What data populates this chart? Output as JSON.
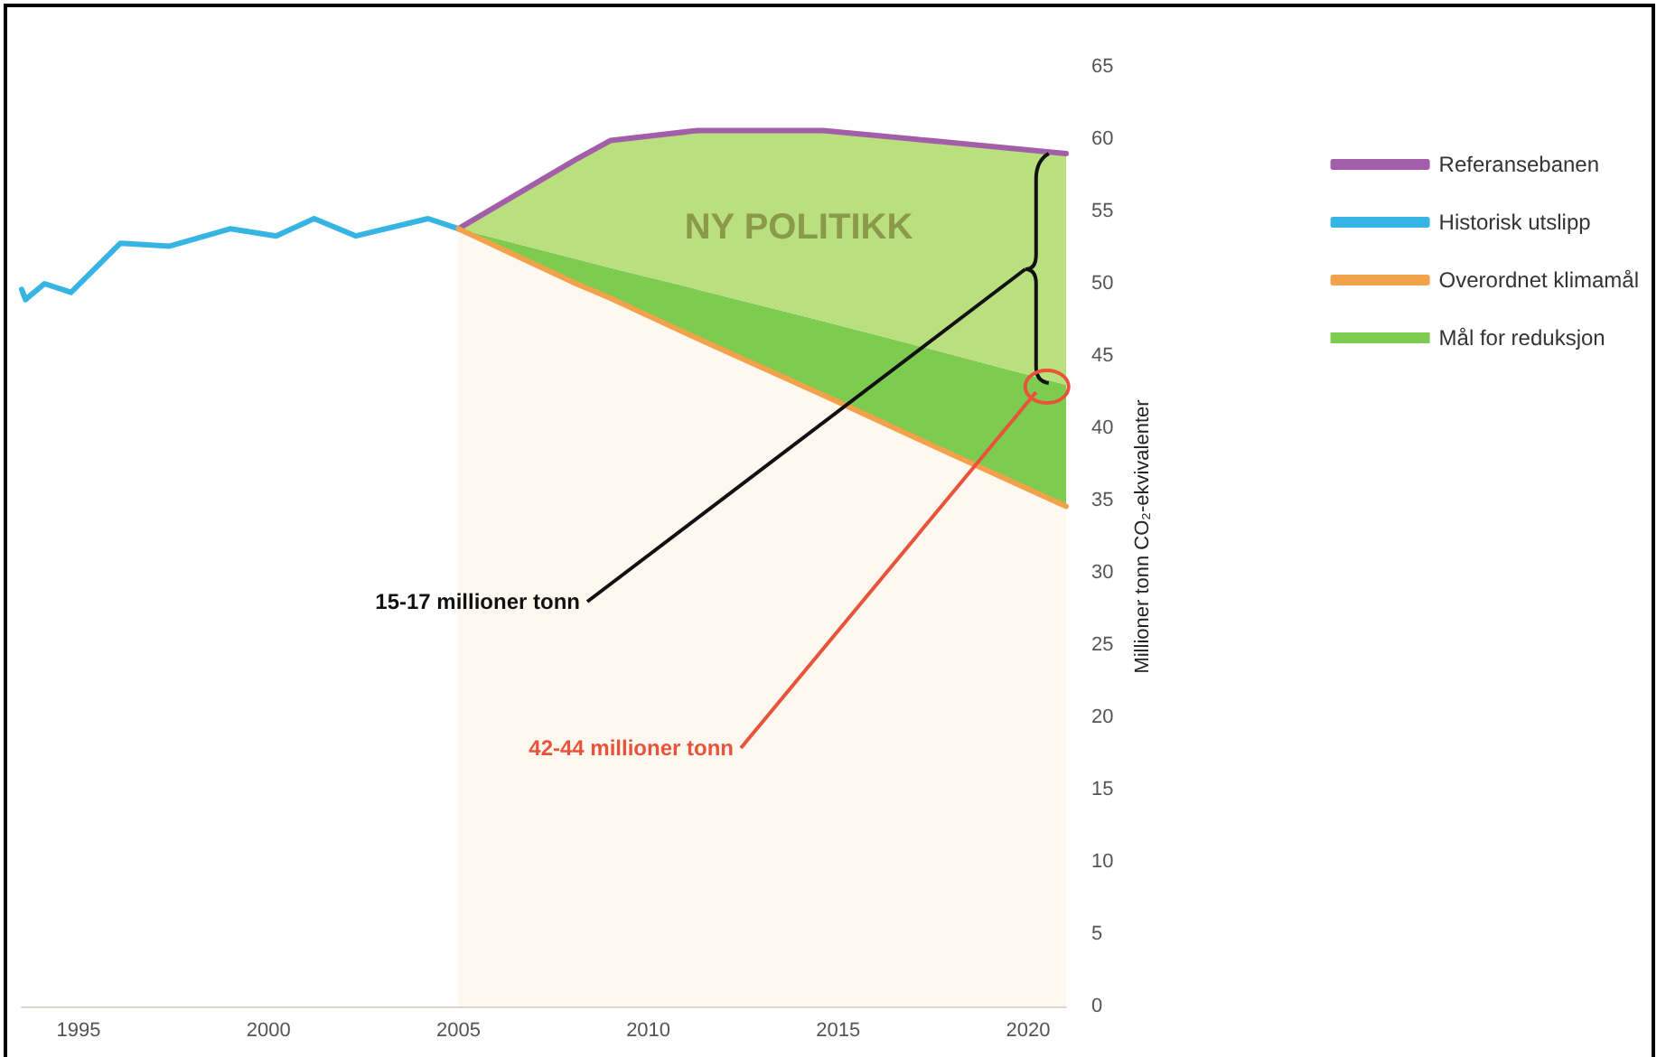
{
  "chart_data": {
    "type": "line",
    "ylabel": "Millioner tonn CO₂-ekvivalenter",
    "xlim": [
      1993.5,
      2021
    ],
    "xticks": [
      1995,
      2000,
      2005,
      2010,
      2015,
      2020
    ],
    "ylim": [
      0,
      65
    ],
    "yticks": [
      0,
      5,
      10,
      15,
      20,
      25,
      30,
      35,
      40,
      45,
      50,
      55,
      60,
      65
    ],
    "grid": false,
    "legend": "top right",
    "marker": "none",
    "line_style": "solid",
    "stacked": true,
    "series": [
      {
        "type": "area",
        "name": "Overordnet klimamål",
        "color": "#f2a24a",
        "x": [
          2005,
          2008.1,
          2009,
          2011.3,
          2014.6,
          2017.4,
          2021
        ],
        "values": [
          53.8,
          50,
          49,
          46.2,
          42.3,
          38.9,
          34.6
        ]
      },
      {
        "type": "area",
        "name": "Mål for reduksjon",
        "color": "#7dcb4f",
        "x": [
          2005,
          2008.1,
          2009,
          2011.3,
          2014.6,
          2017.4,
          2021
        ],
        "values": [
          0,
          1.7,
          2.1,
          3.4,
          5.1,
          6.6,
          8.4
        ]
      },
      {
        "type": "area",
        "color": "#b9df7e",
        "x": [
          2005,
          2008.1,
          2009,
          2011.3,
          2014.6,
          2017.4,
          2021
        ],
        "values": [
          0,
          6.9,
          8.8,
          11,
          13.2,
          14.4,
          16
        ]
      },
      {
        "name": "Referansebanen",
        "color": "#a25ea8",
        "x": [
          2005,
          2008.1,
          2009,
          2011.3,
          2014.6,
          2017.4,
          2021
        ],
        "values": [
          53.8,
          58.6,
          59.9,
          60.6,
          60.6,
          59.9,
          59
        ]
      },
      {
        "name": "Historisk utslipp",
        "color": "#36b4e3",
        "x": [
          1993.5,
          1993.6,
          1994.1,
          1994.8,
          1996.1,
          1997.4,
          1999,
          2000.2,
          2001.2,
          2002.3,
          2004.2,
          2005
        ],
        "values": [
          49.6,
          48.9,
          50,
          49.4,
          52.8,
          52.6,
          53.8,
          53.3,
          54.5,
          53.3,
          54.5,
          53.8
        ]
      }
    ],
    "annotations": [
      "NY POLITIKK",
      "15-17 millioner tonn",
      "42-44 millioner tonn"
    ]
  }
}
